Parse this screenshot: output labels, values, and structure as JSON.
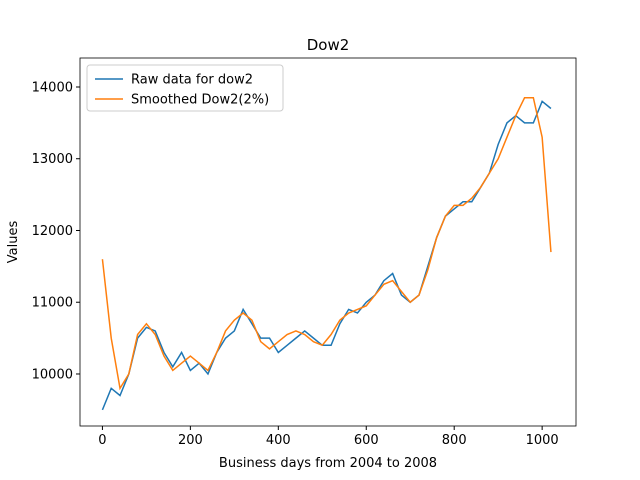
{
  "chart_data": {
    "type": "line",
    "title": "Dow2",
    "xlabel": "Business days from 2004 to 2008",
    "ylabel": "Values",
    "x": [
      0,
      20,
      40,
      60,
      80,
      100,
      120,
      140,
      160,
      180,
      200,
      220,
      240,
      260,
      280,
      300,
      320,
      340,
      360,
      380,
      400,
      420,
      440,
      460,
      480,
      500,
      520,
      540,
      560,
      580,
      600,
      620,
      640,
      660,
      680,
      700,
      720,
      740,
      760,
      780,
      800,
      820,
      840,
      860,
      880,
      900,
      920,
      940,
      960,
      980,
      1000,
      1020
    ],
    "series": [
      {
        "name": "Raw data for dow2",
        "color": "#1f77b4",
        "values": [
          9500,
          9800,
          9700,
          10000,
          10500,
          10650,
          10600,
          10300,
          10100,
          10300,
          10050,
          10150,
          10000,
          10300,
          10500,
          10600,
          10900,
          10700,
          10500,
          10500,
          10300,
          10400,
          10500,
          10600,
          10500,
          10400,
          10400,
          10700,
          10900,
          10850,
          11000,
          11100,
          11300,
          11400,
          11100,
          11000,
          11100,
          11500,
          11900,
          12200,
          12300,
          12400,
          12400,
          12600,
          12800,
          13200,
          13500,
          13600,
          13500,
          13500,
          13800,
          13700
        ]
      },
      {
        "name": "Smoothed Dow2(2%)",
        "color": "#ff7f0e",
        "values": [
          11600,
          10500,
          9800,
          10000,
          10550,
          10700,
          10550,
          10250,
          10050,
          10150,
          10250,
          10150,
          10050,
          10300,
          10600,
          10750,
          10850,
          10750,
          10450,
          10350,
          10450,
          10550,
          10600,
          10550,
          10450,
          10400,
          10550,
          10750,
          10850,
          10900,
          10950,
          11100,
          11250,
          11300,
          11150,
          11000,
          11100,
          11450,
          11900,
          12200,
          12350,
          12350,
          12450,
          12600,
          12800,
          13000,
          13300,
          13600,
          13850,
          13850,
          13300,
          11700
        ]
      }
    ],
    "xlim": [
      -51,
      1077
    ],
    "ylim": [
      9275,
      14404
    ],
    "xticks": [
      0,
      200,
      400,
      600,
      800,
      1000
    ],
    "yticks": [
      10000,
      11000,
      12000,
      13000,
      14000
    ],
    "legend": "upper left"
  }
}
